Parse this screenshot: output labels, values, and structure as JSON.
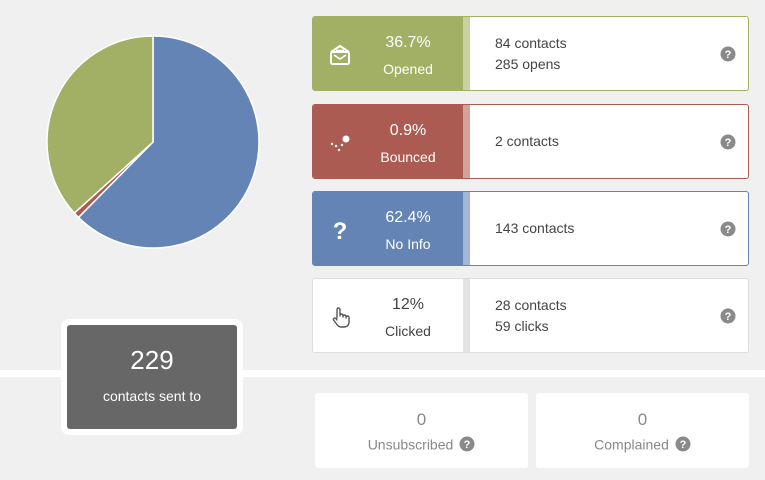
{
  "chart_data": {
    "type": "pie",
    "slices": [
      {
        "label": "No Info",
        "value": 62.4,
        "color": "#6384b4"
      },
      {
        "label": "Bounced",
        "value": 0.9,
        "color": "#ac5b52"
      },
      {
        "label": "Opened",
        "value": 36.7,
        "color": "#a1b064"
      }
    ]
  },
  "total": {
    "count": "229",
    "label": "contacts sent to"
  },
  "stats": [
    {
      "pct": "36.7%",
      "label": "Opened",
      "line1": "84 contacts",
      "line2": "285 opens",
      "icon": "envelope-open-icon",
      "color": "#a1b064",
      "strip": "#c8d1a0",
      "border": "#a1b064"
    },
    {
      "pct": "0.9%",
      "label": "Bounced",
      "line1": "2 contacts",
      "line2": "",
      "icon": "bounce-icon",
      "color": "#ac5b52",
      "strip": "#d4a29c",
      "border": "#ac5b52"
    },
    {
      "pct": "62.4%",
      "label": "No Info",
      "line1": "143 contacts",
      "line2": "",
      "icon": "question-mark-icon",
      "color": "#6384b4",
      "strip": "#a4b7d4",
      "border": "#6384b4"
    },
    {
      "pct": "12%",
      "label": "Clicked",
      "line1": "28 contacts",
      "line2": "59 clicks",
      "icon": "pointer-hand-icon",
      "color": "#ffffff",
      "strip": "#e3e3e3",
      "border": "#dddddd"
    }
  ],
  "mini": [
    {
      "value": "0",
      "label": "Unsubscribed"
    },
    {
      "value": "0",
      "label": "Complained"
    }
  ]
}
